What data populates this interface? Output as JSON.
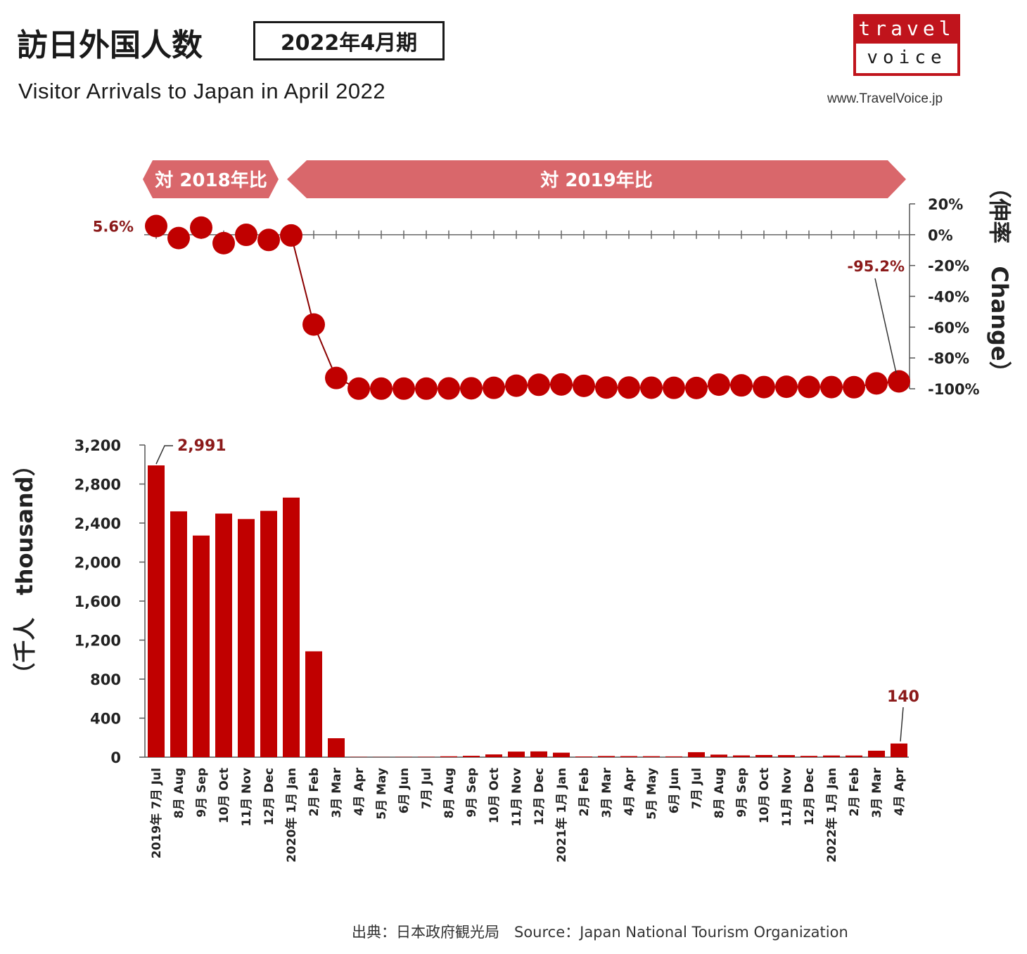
{
  "header": {
    "title_jp": "訪日外国人数",
    "period": "2022年4月期",
    "title_en": "Visitor Arrivals to Japan in April 2022"
  },
  "logo": {
    "top": "travel",
    "bottom": "voice",
    "url": "www.TravelVoice.jp"
  },
  "source": "出典：日本政府観光局　Source：Japan  National Tourism  Organization",
  "banners": {
    "vs2018": "対 2018年比",
    "vs2019": "対 2019年比"
  },
  "colors": {
    "bar": "#c00000",
    "dot": "#c00000",
    "banner": "#d9676b",
    "label": "#8b1a1a"
  },
  "chart_data": [
    {
      "type": "line",
      "ylabel": "（伸率　Change）",
      "ylim": [
        -100,
        20
      ],
      "yticks": [
        "20%",
        "0%",
        "-20%",
        "-40%",
        "-60%",
        "-80%",
        "-100%"
      ],
      "annotations": [
        {
          "index": 0,
          "text": "5.6%"
        },
        {
          "index": 33,
          "text": "-95.2%"
        }
      ],
      "values": [
        5.6,
        -2.2,
        4.6,
        -5.5,
        -0.1,
        -3.4,
        -0.5,
        -58.3,
        -93.0,
        -99.9,
        -99.9,
        -99.9,
        -99.9,
        -99.8,
        -99.7,
        -99.4,
        -98.0,
        -97.4,
        -97.2,
        -98.1,
        -99.2,
        -99.2,
        -99.3,
        -99.4,
        -99.5,
        -97.3,
        -97.8,
        -98.9,
        -98.7,
        -98.8,
        -98.9,
        -99.0,
        -96.5,
        -95.2
      ]
    },
    {
      "type": "bar",
      "ylabel": "（千人　thousand）",
      "ylim": [
        0,
        3200
      ],
      "yticks": [
        "3,200",
        "2,800",
        "2,400",
        "2,000",
        "1,600",
        "1,200",
        "800",
        "400",
        "0"
      ],
      "categories": [
        "2019年 7月 Jul",
        "8月 Aug",
        "9月 Sep",
        "10月 Oct",
        "11月 Nov",
        "12月 Dec",
        "2020年 1月 Jan",
        "2月 Feb",
        "3月 Mar",
        "4月 Apr",
        "5月 May",
        "6月 Jun",
        "7月 Jul",
        "8月 Aug",
        "9月 Sep",
        "10月 Oct",
        "11月 Nov",
        "12月 Dec",
        "2021年 1月 Jan",
        "2月 Feb",
        "3月 Mar",
        "4月 Apr",
        "5月 May",
        "6月 Jun",
        "7月 Jul",
        "8月 Aug",
        "9月 Sep",
        "10月 Oct",
        "11月 Nov",
        "12月 Dec",
        "2022年 1月 Jan",
        "2月 Feb",
        "3月 Mar",
        "4月 Apr"
      ],
      "values": [
        2991,
        2520,
        2272,
        2497,
        2441,
        2525,
        2661,
        1085,
        194,
        3,
        2,
        3,
        4,
        9,
        14,
        28,
        57,
        59,
        46,
        7,
        12,
        11,
        10,
        8,
        51,
        26,
        18,
        22,
        21,
        13,
        17,
        17,
        66,
        140
      ],
      "annotations": [
        {
          "index": 0,
          "text": "2,991"
        },
        {
          "index": 33,
          "text": "140"
        }
      ]
    }
  ]
}
